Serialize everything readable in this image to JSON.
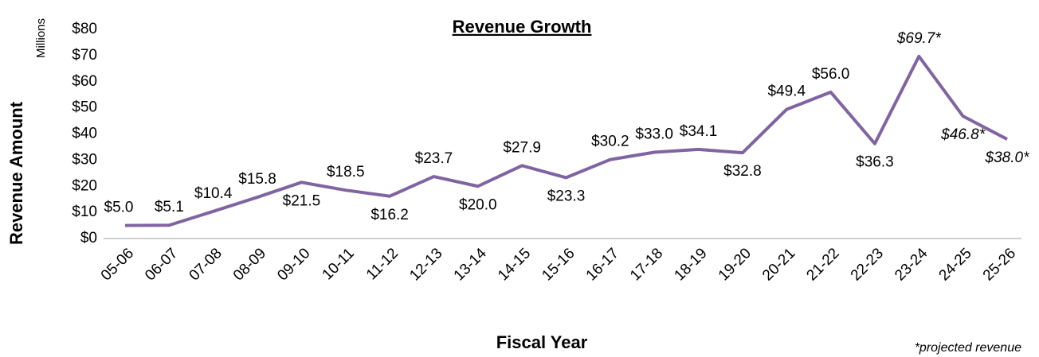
{
  "chart_data": {
    "type": "line",
    "title": "Revenue Growth",
    "x_label": "Fiscal Year",
    "y_label": "Revenue Amount",
    "y_unit": "Millions",
    "annotation": "*projected revenue",
    "categories": [
      "05-06",
      "06-07",
      "07-08",
      "08-09",
      "09-10",
      "10-11",
      "11-12",
      "12-13",
      "13-14",
      "14-15",
      "15-16",
      "16-17",
      "17-18",
      "18-19",
      "19-20",
      "20-21",
      "21-22",
      "22-23",
      "23-24",
      "24-25",
      "25-26"
    ],
    "series": [
      {
        "name": "Revenue",
        "color": "#8064a2",
        "values": [
          5.0,
          5.1,
          10.4,
          15.8,
          21.5,
          18.5,
          16.2,
          23.7,
          20.0,
          27.9,
          23.3,
          30.2,
          33.0,
          34.1,
          32.8,
          49.4,
          56.0,
          36.3,
          69.7,
          46.8,
          38.0
        ],
        "value_labels": [
          "$5.0",
          "$5.1",
          "$10.4",
          "$15.8",
          "$21.5",
          "$18.5",
          "$16.2",
          "$23.7",
          "$20.0",
          "$27.9",
          "$23.3",
          "$30.2",
          "$33.0",
          "$34.1",
          "$32.8",
          "$49.4",
          "$56.0",
          "$36.3",
          "$69.7*",
          "$46.8*",
          "$38.0*"
        ]
      }
    ],
    "ylim": [
      0,
      80
    ],
    "yticks": [
      {
        "value": 0,
        "label": "$0"
      },
      {
        "value": 10,
        "label": "$10"
      },
      {
        "value": 20,
        "label": "$20"
      },
      {
        "value": 30,
        "label": "$30"
      },
      {
        "value": 40,
        "label": "$40"
      },
      {
        "value": 50,
        "label": "$50"
      },
      {
        "value": 60,
        "label": "$60"
      },
      {
        "value": 70,
        "label": "$70"
      },
      {
        "value": 80,
        "label": "$80"
      }
    ],
    "grid": false
  }
}
